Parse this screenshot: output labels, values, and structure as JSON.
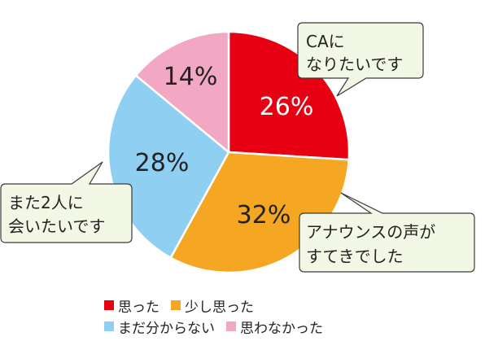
{
  "chart_data": {
    "type": "pie",
    "title": "",
    "categories": [
      "思った",
      "少し思った",
      "まだ分からない",
      "思わなかった"
    ],
    "values": [
      26,
      32,
      28,
      14
    ],
    "value_labels": [
      "26%",
      "32%",
      "28%",
      "14%"
    ],
    "colors": [
      "#e60012",
      "#f5a623",
      "#8fd0f2",
      "#f2a7c3"
    ],
    "label_colors": [
      "#ffffff",
      "#222222",
      "#222222",
      "#222222"
    ],
    "start_angle": "12 o'clock",
    "direction": "clockwise",
    "legend_position": "bottom",
    "annotations": [
      {
        "slice": 0,
        "lines": [
          "CAに",
          "なりたいです"
        ]
      },
      {
        "slice": 1,
        "lines": [
          "アナウンスの声が",
          "すてきでした"
        ]
      },
      {
        "slice": 2,
        "lines": [
          "また2人に",
          "会いたいです"
        ]
      }
    ]
  }
}
